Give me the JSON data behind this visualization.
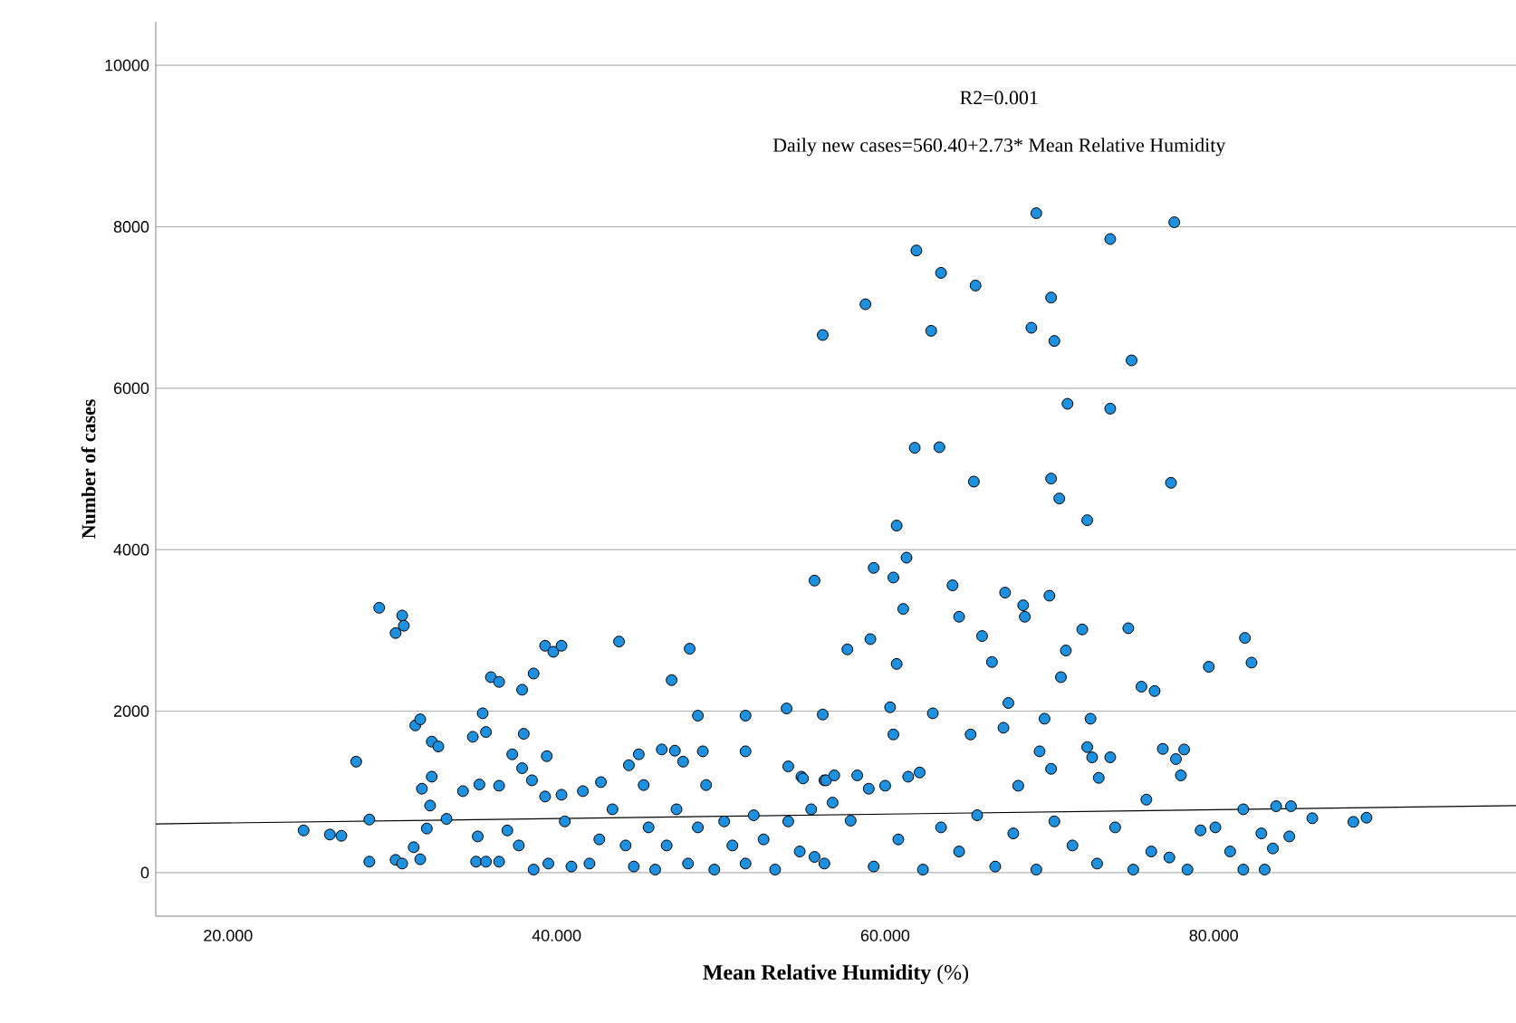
{
  "chart_data": {
    "type": "scatter",
    "xlabel": "**Mean Relative Humidity** (%)",
    "ylabel": "Number of cases",
    "annotations": [
      "R2=0.001",
      "Daily new cases=560.40+2.73* Mean Relative Humidity"
    ],
    "xlim": [
      15.6,
      98.4
    ],
    "ylim": [
      -540,
      10540
    ],
    "xticks": [
      {
        "value": 20,
        "label": "20.000"
      },
      {
        "value": 40,
        "label": "40.000"
      },
      {
        "value": 60,
        "label": "60.000"
      },
      {
        "value": 80,
        "label": "80.000"
      }
    ],
    "yticks": [
      0,
      2000,
      4000,
      6000,
      8000,
      10000
    ],
    "grid": "y",
    "series": [
      {
        "marker": "circle",
        "color": "#1e90e0",
        "x": [
          24.6,
          26.2,
          26.9,
          27.8,
          28.6,
          28.6,
          29.2,
          30.2,
          30.6,
          30.7,
          30.2,
          30.6,
          31.4,
          31.7,
          31.8,
          31.3,
          31.7,
          32.1,
          32.4,
          32.4,
          32.8,
          32.3,
          33.3,
          34.3,
          34.9,
          35.5,
          35.7,
          36.0,
          36.5,
          35.3,
          35.2,
          35.1,
          35.7,
          36.5,
          36.5,
          37.3,
          37.9,
          38.0,
          38.6,
          39.3,
          39.8,
          40.3,
          39.4,
          37.9,
          38.5,
          39.3,
          40.3,
          43.8,
          47.0,
          48.1,
          48.6,
          51.5,
          54.0,
          55.7,
          56.2,
          56.2,
          48.9,
          51.5,
          45.0,
          46.4,
          47.2,
          47.7,
          44.4,
          54.1,
          54.9,
          56.3,
          37.0,
          37.7,
          38.6,
          39.5,
          40.5,
          40.9,
          41.6,
          42.0,
          42.6,
          42.7,
          43.4,
          44.2,
          44.7,
          45.3,
          45.6,
          46.0,
          46.7,
          47.3,
          48.0,
          48.6,
          49.1,
          49.6,
          50.2,
          50.7,
          51.5,
          52.0,
          52.6,
          53.3,
          54.1,
          54.8,
          55.5,
          56.3,
          69.2,
          77.6,
          73.7,
          61.9,
          63.4,
          65.5,
          58.8,
          70.1,
          62.8,
          68.9,
          70.3,
          75.0,
          71.1,
          73.7,
          61.8,
          63.3,
          65.4,
          70.1,
          77.4,
          70.6,
          72.3,
          60.7,
          61.3,
          59.3,
          60.5,
          64.1,
          67.3,
          68.4,
          68.5,
          70.0,
          61.1,
          64.5,
          65.9,
          72.0,
          74.8,
          71.0,
          57.7,
          59.1,
          60.7,
          66.5,
          70.7,
          81.9,
          82.3,
          79.7,
          75.6,
          76.4,
          60.3,
          62.9,
          60.5,
          67.5,
          67.2,
          65.2,
          69.7,
          72.5,
          69.4,
          70.1,
          72.3,
          72.6,
          73.7,
          73.0,
          76.9,
          78.2,
          77.7,
          78.0,
          68.1,
          75.9,
          55.0,
          56.4,
          56.9,
          58.3,
          59.0,
          60.0,
          61.4,
          62.1,
          56.8,
          55.7,
          57.9,
          59.3,
          60.8,
          62.3,
          63.4,
          64.5,
          65.6,
          66.7,
          67.8,
          69.2,
          70.3,
          71.4,
          72.9,
          74.0,
          75.1,
          76.2,
          77.3,
          78.4,
          79.2,
          80.1,
          81.0,
          81.8,
          81.8,
          82.9,
          83.1,
          83.6,
          83.8,
          84.6,
          84.7,
          86.0,
          88.5,
          89.3
        ],
        "values": [
          522,
          471,
          456,
          1374,
          657,
          135,
          3280,
          2967,
          3184,
          3058,
          157,
          112,
          1823,
          1898,
          1039,
          314,
          165,
          546,
          1188,
          1622,
          1562,
          830,
          665,
          1009,
          1682,
          1973,
          1741,
          2421,
          2362,
          1091,
          448,
          135,
          135,
          135,
          1076,
          1465,
          2265,
          1719,
          2466,
          2810,
          2735,
          2810,
          1442,
          1293,
          1143,
          942,
          964,
          2862,
          2384,
          2773,
          1944,
          1944,
          2033,
          3617,
          6659,
          1958,
          1502,
          1502,
          1465,
          1525,
          1510,
          1374,
          1330,
          1315,
          1188,
          1143,
          522,
          336,
          37,
          112,
          634,
          75,
          1009,
          112,
          411,
          1121,
          784,
          336,
          75,
          1084,
          560,
          37,
          336,
          784,
          112,
          560,
          1084,
          37,
          634,
          336,
          112,
          710,
          411,
          37,
          634,
          261,
          784,
          112,
          8168,
          8056,
          7848,
          7706,
          7429,
          7272,
          7040,
          7123,
          6711,
          6749,
          6585,
          6345,
          5807,
          5747,
          5262,
          5269,
          4843,
          4881,
          4828,
          4634,
          4365,
          4298,
          3901,
          3774,
          3655,
          3558,
          3468,
          3311,
          3169,
          3430,
          3266,
          3169,
          2930,
          3012,
          3027,
          2751,
          2765,
          2892,
          2585,
          2608,
          2421,
          2907,
          2601,
          2549,
          2303,
          2249,
          2048,
          1973,
          1711,
          2101,
          1794,
          1711,
          1906,
          1906,
          1502,
          1285,
          1554,
          1427,
          1428,
          1173,
          1532,
          1525,
          1406,
          1204,
          1076,
          904,
          1166,
          1143,
          1204,
          1204,
          1039,
          1076,
          1188,
          1240,
          867,
          194,
          643,
          75,
          411,
          37,
          560,
          261,
          710,
          75,
          485,
          37,
          634,
          336,
          112,
          560,
          37,
          261,
          187,
          37,
          523,
          560,
          261,
          784,
          37,
          485,
          37,
          299,
          822,
          448,
          822,
          673,
          628,
          680
        ]
      },
      {
        "type": "line",
        "marker": "none",
        "color": "#000000",
        "x": [
          15.6,
          98.4
        ],
        "values": [
          603,
          829
        ]
      }
    ]
  }
}
